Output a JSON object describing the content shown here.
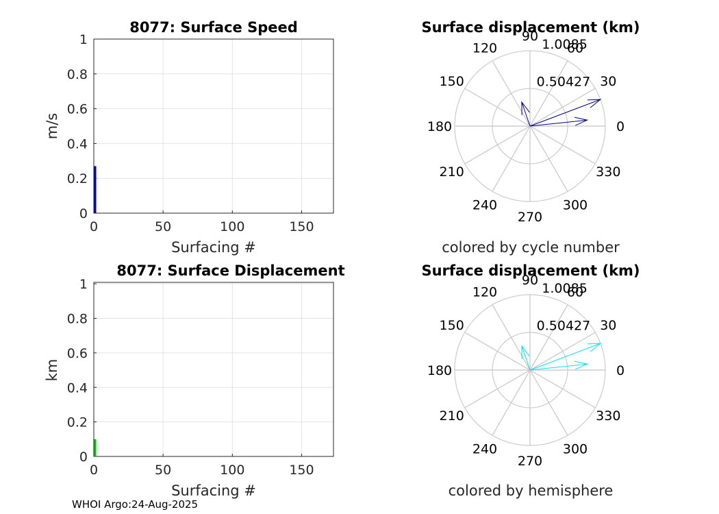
{
  "chart_data": [
    {
      "id": "speed",
      "type": "bar",
      "title": "8077: Surface Speed",
      "xlabel": "Surfacing #",
      "ylabel": "m/s",
      "xlim": [
        0,
        173
      ],
      "ylim": [
        0,
        1
      ],
      "xticks": [
        "0",
        "50",
        "100",
        "150"
      ],
      "yticks": [
        "0",
        "0.2",
        "0.4",
        "0.6",
        "0.8",
        "1"
      ],
      "color": "#0000cd",
      "x": [
        1
      ],
      "values": [
        0.27
      ]
    },
    {
      "id": "displacement",
      "type": "bar",
      "title": "8077: Surface Displacement",
      "xlabel": "Surfacing #",
      "ylabel": "km",
      "xlim": [
        0,
        173
      ],
      "ylim": [
        0,
        1.0085
      ],
      "xticks": [
        "0",
        "50",
        "100",
        "150"
      ],
      "yticks": [
        "0",
        "0.2",
        "0.4",
        "0.6",
        "0.8",
        "1"
      ],
      "color": "#00c800",
      "x": [
        1
      ],
      "values": [
        0.1
      ]
    },
    {
      "id": "polar_cycle",
      "type": "polar-compass",
      "title": "Surface displacement (km)",
      "caption": "colored by cycle number",
      "rmax": 1.0085,
      "ring_labels": [
        "0.50427",
        "1.0085"
      ],
      "angle_labels": [
        "0",
        "30",
        "60",
        "90",
        "120",
        "150",
        "180",
        "210",
        "240",
        "270",
        "300",
        "330"
      ],
      "arrow_color": "#00008b",
      "arrows": [
        {
          "angle_deg": 20.7,
          "magnitude": 1.0085
        },
        {
          "angle_deg": 6,
          "magnitude": 0.77
        },
        {
          "angle_deg": 109,
          "magnitude": 0.34
        }
      ]
    },
    {
      "id": "polar_hemisphere",
      "type": "polar-compass",
      "title": "Surface displacement (km)",
      "caption": "colored by hemisphere",
      "rmax": 1.0085,
      "ring_labels": [
        "0.50427",
        "1.0085"
      ],
      "angle_labels": [
        "0",
        "30",
        "60",
        "90",
        "120",
        "150",
        "180",
        "210",
        "240",
        "270",
        "300",
        "330"
      ],
      "arrow_color": "#00e5ee",
      "arrows": [
        {
          "angle_deg": 20.7,
          "magnitude": 1.0085
        },
        {
          "angle_deg": 6,
          "magnitude": 0.77
        },
        {
          "angle_deg": 109,
          "magnitude": 0.34
        }
      ]
    }
  ],
  "footer": "WHOI Argo:24-Aug-2025"
}
